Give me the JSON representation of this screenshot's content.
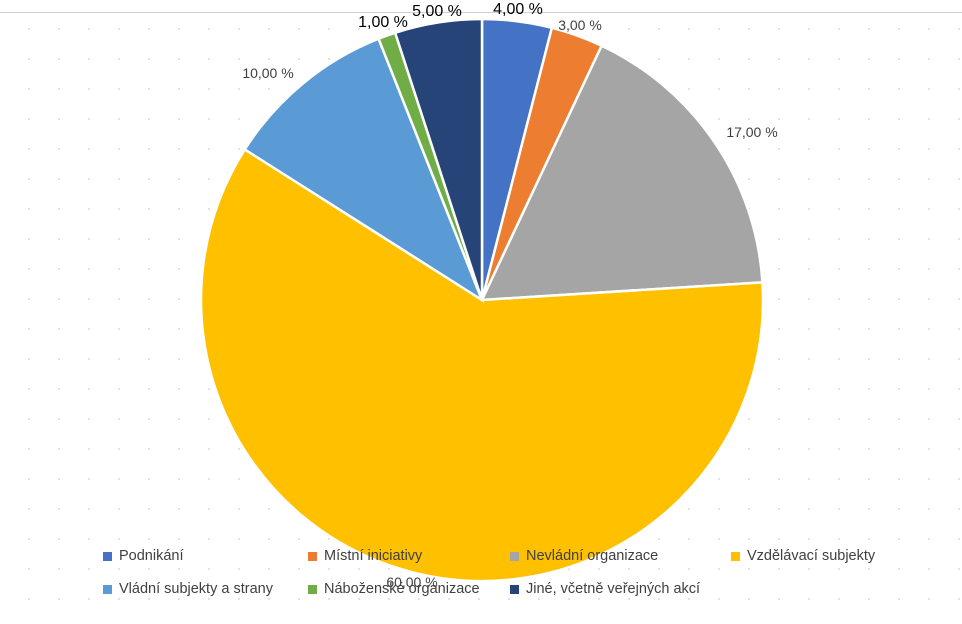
{
  "colors": {
    "Podnikání": "#4472C4",
    "Místní iniciativy": "#ED7D31",
    "Nevládní organizace": "#A5A5A5",
    "Vzdělávací subjekty": "#FFC000",
    "Vládní subjekty a strany": "#5B9BD5",
    "Náboženské organizace": "#70AD47",
    "Jiné, včetně veřejných akcí": "#264478"
  },
  "chart_data": {
    "type": "pie",
    "title": "",
    "categories": [
      "Podnikání",
      "Místní iniciativy",
      "Nevládní organizace",
      "Vzdělávací subjekty",
      "Vládní subjekty a strany",
      "Náboženské organizace",
      "Jiné, včetně veřejných akcí"
    ],
    "values": [
      4,
      3,
      17,
      60,
      10,
      1,
      5
    ],
    "data_labels": [
      "4,00 %",
      "3,00 %",
      "17,00 %",
      "60,00 %",
      "10,00 %",
      "1,00 %",
      "5,00 %"
    ],
    "legend_position": "bottom",
    "start_angle": "top, clockwise",
    "grid": false
  }
}
